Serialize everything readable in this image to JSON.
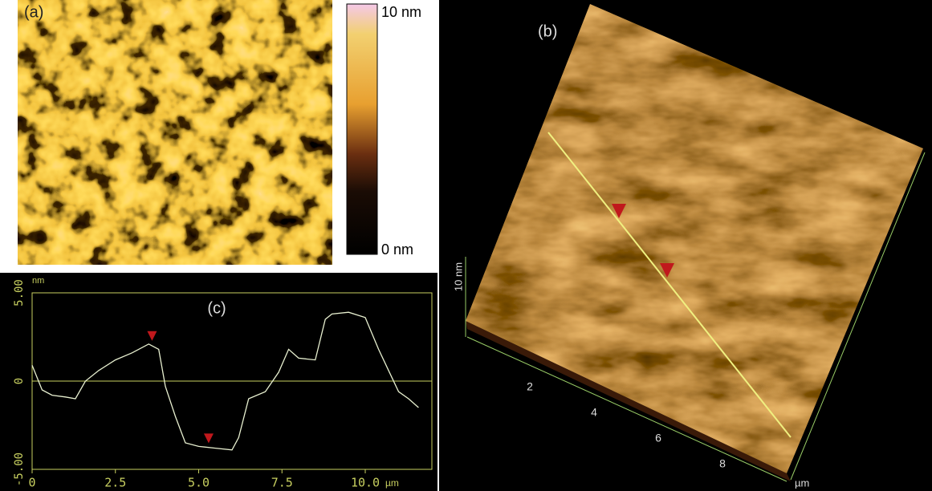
{
  "panels": {
    "a": {
      "label": "(a)",
      "colorbar_max": "10 nm",
      "colorbar_min": "0 nm"
    },
    "b": {
      "label": "(b)",
      "z_label": "10 nm",
      "ticks": [
        2,
        4,
        6,
        8
      ],
      "unit": "µm"
    }
  },
  "chart_data": {
    "type": "line",
    "title": "(c)",
    "y_unit": "nm",
    "x_unit": "µm",
    "xlim": [
      0,
      12
    ],
    "ylim": [
      -5,
      5
    ],
    "xticks": [
      0,
      2.5,
      {
        "value": 5,
        "label": "5.0"
      },
      7.5,
      {
        "value": 10,
        "label": "10.0"
      }
    ],
    "yticks": [
      {
        "value": -5,
        "label": "-5.00"
      },
      0,
      {
        "value": 5,
        "label": "5.00"
      }
    ],
    "x": [
      0,
      0.3,
      0.6,
      1.0,
      1.3,
      1.6,
      2.0,
      2.5,
      3.0,
      3.5,
      3.8,
      4.0,
      4.3,
      4.6,
      5.0,
      5.5,
      6.0,
      6.2,
      6.5,
      7.0,
      7.4,
      7.7,
      8.0,
      8.5,
      8.8,
      9.0,
      9.5,
      10.0,
      10.4,
      10.7,
      11.0,
      11.3,
      11.6
    ],
    "series": [
      {
        "color": "#e8f0d0",
        "values": [
          0.9,
          -0.5,
          -0.8,
          -0.9,
          -1.0,
          0,
          0.6,
          1.2,
          1.6,
          2.1,
          1.8,
          -0.3,
          -2.0,
          -3.5,
          -3.7,
          -3.8,
          -3.9,
          -3.2,
          -1.0,
          -0.6,
          0.5,
          1.8,
          1.3,
          1.2,
          3.5,
          3.8,
          3.9,
          3.6,
          1.8,
          0.6,
          -0.6,
          -1.0,
          -1.5
        ]
      }
    ],
    "markers": {
      "x": [
        3.6,
        5.3
      ],
      "values": [
        2.1,
        -3.7
      ],
      "color": "#c0181c"
    }
  }
}
